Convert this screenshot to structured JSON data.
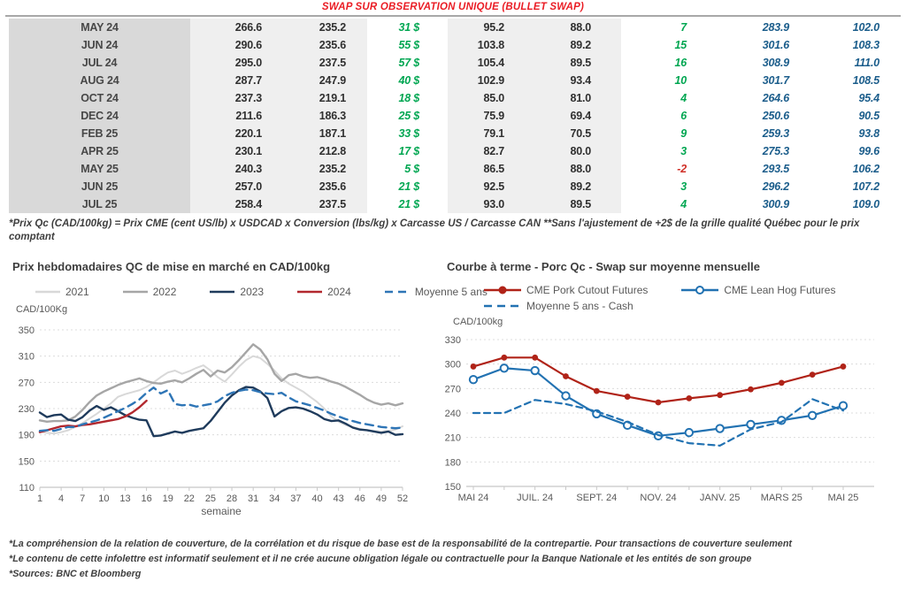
{
  "colors": {
    "title_red": "#ea1d25",
    "positive_green": "#00a651",
    "negative_red": "#d03028",
    "swap_blue": "#1b5d8b",
    "grid_gray": "#dcdcdc",
    "axis_gray": "#c8c8c8"
  },
  "table": {
    "title": "SWAP SUR OBSERVATION UNIQUE (BULLET SWAP)",
    "rows": [
      {
        "month": "MAY 24",
        "values": [
          "266.6",
          "235.2",
          "31 $",
          "95.2",
          "88.0",
          "7",
          "283.9",
          "102.0"
        ]
      },
      {
        "month": "JUN 24",
        "values": [
          "290.6",
          "235.6",
          "55 $",
          "103.8",
          "89.2",
          "15",
          "301.6",
          "108.3"
        ]
      },
      {
        "month": "JUL 24",
        "values": [
          "295.0",
          "237.5",
          "57 $",
          "105.4",
          "89.5",
          "16",
          "308.9",
          "111.0"
        ]
      },
      {
        "month": "AUG 24",
        "values": [
          "287.7",
          "247.9",
          "40 $",
          "102.9",
          "93.4",
          "10",
          "301.7",
          "108.5"
        ]
      },
      {
        "month": "OCT 24",
        "values": [
          "237.3",
          "219.1",
          "18 $",
          "85.0",
          "81.0",
          "4",
          "264.6",
          "95.4"
        ]
      },
      {
        "month": "DEC 24",
        "values": [
          "211.6",
          "186.3",
          "25 $",
          "75.9",
          "69.4",
          "6",
          "250.6",
          "90.5"
        ]
      },
      {
        "month": "FEB 25",
        "values": [
          "220.1",
          "187.1",
          "33 $",
          "79.1",
          "70.5",
          "9",
          "259.3",
          "93.8"
        ]
      },
      {
        "month": "APR 25",
        "values": [
          "230.1",
          "212.8",
          "17 $",
          "82.7",
          "80.0",
          "3",
          "275.3",
          "99.6"
        ]
      },
      {
        "month": "MAY 25",
        "values": [
          "240.3",
          "235.2",
          "5 $",
          "86.5",
          "88.0",
          "-2",
          "293.5",
          "106.2"
        ]
      },
      {
        "month": "JUN 25",
        "values": [
          "257.0",
          "235.6",
          "21 $",
          "92.5",
          "89.2",
          "3",
          "296.2",
          "107.2"
        ]
      },
      {
        "month": "JUL 25",
        "values": [
          "258.4",
          "237.5",
          "21 $",
          "93.0",
          "89.5",
          "4",
          "300.9",
          "109.0"
        ]
      }
    ]
  },
  "footnote": "*Prix Qc (CAD/100kg) = Prix CME (cent US/lb) x USDCAD x Conversion (lbs/kg) x Carcasse US / Carcasse CAN **Sans l'ajustement de +2$ de la grille qualité Québec pour le prix comptant",
  "chart_data": [
    {
      "type": "line",
      "title": "Prix hebdomadaires QC de mise en marché en CAD/100kg",
      "ylabel": "CAD/100Kg",
      "xlabel": "semaine",
      "ylim": [
        110,
        350
      ],
      "yticks": [
        110,
        150,
        190,
        230,
        270,
        310,
        350
      ],
      "xlim": [
        1,
        52
      ],
      "xticks": [
        1,
        4,
        7,
        10,
        13,
        16,
        19,
        22,
        25,
        28,
        31,
        34,
        37,
        40,
        43,
        46,
        49,
        52
      ],
      "x_start": 1,
      "grid": "dashed",
      "legend_position": "top",
      "series": [
        {
          "name": "2021",
          "color": "#d8d8d8",
          "width": 2,
          "values": [
            195,
            193,
            192,
            194,
            197,
            202,
            208,
            215,
            222,
            230,
            238,
            248,
            252,
            255,
            258,
            263,
            270,
            278,
            285,
            288,
            283,
            287,
            292,
            296,
            288,
            278,
            271,
            282,
            294,
            304,
            310,
            307,
            298,
            288,
            276,
            268,
            262,
            256,
            248,
            240,
            230,
            218,
            210,
            205,
            202,
            199,
            197,
            196,
            195,
            196,
            198,
            203
          ]
        },
        {
          "name": "2022",
          "color": "#a6a6a6",
          "width": 2.4,
          "values": [
            212,
            210,
            211,
            211,
            212,
            218,
            228,
            240,
            250,
            256,
            261,
            266,
            270,
            273,
            276,
            272,
            269,
            268,
            271,
            273,
            270,
            276,
            283,
            289,
            279,
            288,
            285,
            293,
            304,
            316,
            328,
            320,
            305,
            283,
            272,
            281,
            283,
            279,
            277,
            278,
            275,
            271,
            268,
            263,
            257,
            251,
            244,
            239,
            236,
            238,
            235,
            238
          ]
        },
        {
          "name": "2023",
          "color": "#1f3b5c",
          "width": 2.4,
          "values": [
            224,
            217,
            220,
            221,
            213,
            211,
            217,
            227,
            234,
            228,
            232,
            226,
            220,
            216,
            213,
            212,
            188,
            189,
            192,
            195,
            193,
            196,
            198,
            200,
            211,
            225,
            239,
            250,
            258,
            263,
            262,
            256,
            246,
            218,
            226,
            231,
            232,
            230,
            226,
            221,
            214,
            211,
            212,
            207,
            201,
            198,
            197,
            195,
            193,
            195,
            190,
            191
          ]
        },
        {
          "name": "2024",
          "color": "#b2282e",
          "width": 2.4,
          "values": [
            194,
            197,
            200,
            203,
            204,
            203,
            205,
            206,
            208,
            210,
            212,
            214,
            218,
            224,
            232,
            242
          ]
        },
        {
          "name": "Moyenne 5 ans",
          "color": "#2e75b6",
          "width": 2.4,
          "dash": "9,6",
          "values": [
            196,
            197,
            196,
            199,
            202,
            202,
            206,
            209,
            212,
            216,
            221,
            226,
            231,
            237,
            244,
            254,
            262,
            253,
            258,
            237,
            235,
            236,
            233,
            235,
            237,
            241,
            249,
            254,
            257,
            259,
            258,
            255,
            253,
            252,
            254,
            247,
            241,
            238,
            235,
            231,
            227,
            222,
            218,
            214,
            211,
            208,
            206,
            204,
            202,
            201,
            200,
            201
          ]
        }
      ]
    },
    {
      "type": "line",
      "title": "Courbe à terme - Porc Qc - Swap sur moyenne mensuelle",
      "ylabel": "CAD/100kg",
      "xlabel": "",
      "ylim": [
        150,
        330
      ],
      "yticks": [
        150,
        180,
        210,
        240,
        270,
        300,
        330
      ],
      "xlim": [
        0,
        12
      ],
      "xticks": [
        0,
        1,
        2,
        3,
        4,
        5,
        6,
        7,
        8,
        9,
        10,
        11,
        12
      ],
      "xtick_labels": [
        "MAI 24",
        "",
        "JUIL. 24",
        "",
        "SEPT. 24",
        "",
        "NOV. 24",
        "",
        "JANV. 25",
        "",
        "MARS 25",
        "",
        "MAI 25"
      ],
      "x_start": 0,
      "grid": "dashed",
      "legend_position": "top",
      "series": [
        {
          "name": "CME Pork Cutout Futures",
          "color": "#b02318",
          "width": 2.2,
          "marker": "dot",
          "values": [
            297,
            308,
            308,
            285,
            267,
            260,
            253,
            258,
            262,
            269,
            277,
            287,
            297
          ]
        },
        {
          "name": "CME Lean Hog Futures",
          "color": "#2272b2",
          "width": 2.2,
          "marker": "circle",
          "values": [
            281,
            295,
            292,
            261,
            239,
            225,
            212,
            216,
            221,
            226,
            231,
            237,
            249
          ]
        },
        {
          "name": "Moyenne 5 ans - Cash",
          "color": "#2272b2",
          "width": 2.2,
          "dash": "7,5",
          "values": [
            240,
            240,
            256,
            251,
            242,
            229,
            213,
            203,
            200,
            220,
            229,
            257,
            243
          ]
        }
      ]
    }
  ],
  "footer": {
    "lines": [
      "*La compréhension de la relation de couverture, de la corrélation et du risque de base est de la responsabilité de la contrepartie. Pour transactions de couverture seulement",
      "*Le contenu de cette infolettre est informatif seulement et il ne crée aucune obligation légale ou contractuelle pour la Banque Nationale et les entités de son groupe",
      "*Sources: BNC et Bloomberg"
    ]
  }
}
